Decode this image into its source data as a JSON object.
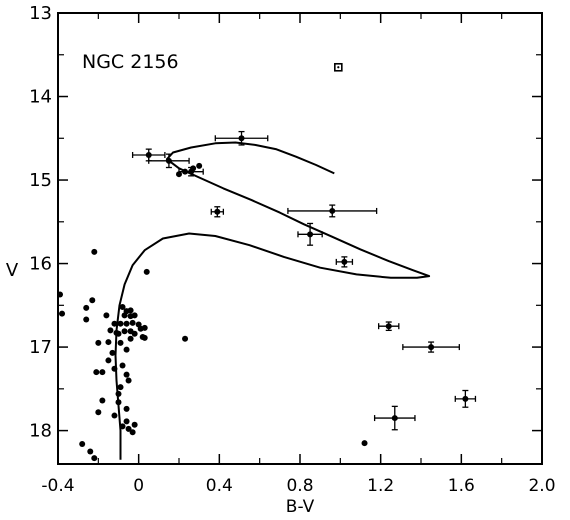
{
  "chart_data": {
    "type": "scatter",
    "title": "",
    "annotation": "NGC 2156",
    "xlabel": "B-V",
    "ylabel": "V",
    "xlim": [
      -0.4,
      2.0
    ],
    "ylim": [
      18.4,
      13.0
    ],
    "y_inverted": true,
    "grid": false,
    "legend": "none",
    "x_ticks": [
      -0.4,
      0.0,
      0.4,
      0.8,
      1.2,
      1.6,
      2.0
    ],
    "x_tick_labels": [
      "-0.4",
      "0",
      "0.4",
      "0.8",
      "1.2",
      "1.6",
      "2.0"
    ],
    "y_ticks": [
      13,
      14,
      15,
      16,
      17,
      18
    ],
    "y_tick_labels": [
      "13",
      "14",
      "15",
      "16",
      "17",
      "18"
    ],
    "series": [
      {
        "marker": "dot",
        "points": [
          [
            -0.39,
            16.37
          ],
          [
            -0.38,
            16.6
          ],
          [
            -0.22,
            15.86
          ],
          [
            -0.26,
            16.53
          ],
          [
            -0.23,
            16.44
          ],
          [
            -0.26,
            16.67
          ],
          [
            -0.2,
            16.95
          ],
          [
            -0.21,
            17.3
          ],
          [
            -0.18,
            17.3
          ],
          [
            -0.18,
            17.64
          ],
          [
            -0.2,
            17.78
          ],
          [
            -0.28,
            18.16
          ],
          [
            -0.24,
            18.25
          ],
          [
            -0.22,
            18.33
          ],
          [
            -0.16,
            16.62
          ],
          [
            -0.14,
            16.8
          ],
          [
            -0.12,
            16.72
          ],
          [
            -0.11,
            16.83
          ],
          [
            -0.15,
            16.94
          ],
          [
            -0.13,
            17.07
          ],
          [
            -0.15,
            17.16
          ],
          [
            -0.12,
            17.26
          ],
          [
            -0.09,
            17.48
          ],
          [
            -0.1,
            17.56
          ],
          [
            -0.1,
            17.66
          ],
          [
            -0.12,
            17.82
          ],
          [
            -0.08,
            17.95
          ],
          [
            -0.06,
            17.89
          ],
          [
            -0.06,
            17.74
          ],
          [
            -0.05,
            17.98
          ],
          [
            -0.03,
            18.02
          ],
          [
            -0.02,
            17.93
          ],
          [
            -0.08,
            16.52
          ],
          [
            -0.06,
            16.57
          ],
          [
            -0.04,
            16.56
          ],
          [
            -0.07,
            16.62
          ],
          [
            -0.04,
            16.63
          ],
          [
            -0.02,
            16.62
          ],
          [
            -0.09,
            16.72
          ],
          [
            -0.06,
            16.72
          ],
          [
            -0.03,
            16.71
          ],
          [
            0.0,
            16.73
          ],
          [
            -0.07,
            16.81
          ],
          [
            -0.04,
            16.81
          ],
          [
            -0.02,
            16.84
          ],
          [
            0.01,
            16.78
          ],
          [
            0.02,
            16.88
          ],
          [
            -0.1,
            16.84
          ],
          [
            -0.09,
            16.95
          ],
          [
            -0.06,
            17.03
          ],
          [
            -0.08,
            17.22
          ],
          [
            -0.06,
            17.33
          ],
          [
            -0.05,
            17.4
          ],
          [
            -0.04,
            16.9
          ],
          [
            0.03,
            16.77
          ],
          [
            0.03,
            16.89
          ],
          [
            0.04,
            16.1
          ],
          [
            0.2,
            14.93
          ],
          [
            0.23,
            14.9
          ],
          [
            0.27,
            14.86
          ],
          [
            0.3,
            14.83
          ],
          [
            0.23,
            16.9
          ],
          [
            1.12,
            18.15
          ]
        ]
      },
      {
        "marker": "errorbar",
        "points": [
          {
            "x": 0.05,
            "y": 14.7,
            "xerr": 0.08,
            "yerr": 0.07
          },
          {
            "x": 0.15,
            "y": 14.77,
            "xerr": 0.1,
            "yerr": 0.08
          },
          {
            "x": 0.26,
            "y": 14.9,
            "xerr": 0.06,
            "yerr": 0.05
          },
          {
            "x": 0.51,
            "y": 14.5,
            "xerr": 0.13,
            "yerr": 0.08
          },
          {
            "x": 0.39,
            "y": 15.38,
            "xerr": 0.03,
            "yerr": 0.06
          },
          {
            "x": 0.96,
            "y": 15.37,
            "xerr": 0.22,
            "yerr": 0.07
          },
          {
            "x": 0.85,
            "y": 15.65,
            "xerr": 0.06,
            "yerr": 0.13
          },
          {
            "x": 1.02,
            "y": 15.98,
            "xerr": 0.04,
            "yerr": 0.06
          },
          {
            "x": 1.24,
            "y": 16.75,
            "xerr": 0.05,
            "yerr": 0.05
          },
          {
            "x": 1.45,
            "y": 17.0,
            "xerr": 0.14,
            "yerr": 0.06
          },
          {
            "x": 1.27,
            "y": 17.85,
            "xerr": 0.1,
            "yerr": 0.14
          },
          {
            "x": 1.62,
            "y": 17.62,
            "xerr": 0.05,
            "yerr": 0.1
          }
        ]
      },
      {
        "marker": "open-square",
        "points": [
          [
            0.99,
            13.65
          ]
        ]
      },
      {
        "marker": "line",
        "points": [
          [
            -0.09,
            18.35
          ],
          [
            -0.09,
            18.0
          ],
          [
            -0.1,
            17.7
          ],
          [
            -0.11,
            17.4
          ],
          [
            -0.115,
            17.1
          ],
          [
            -0.11,
            16.8
          ],
          [
            -0.095,
            16.5
          ],
          [
            -0.07,
            16.25
          ],
          [
            -0.03,
            16.02
          ],
          [
            0.03,
            15.84
          ],
          [
            0.12,
            15.7
          ],
          [
            0.25,
            15.64
          ],
          [
            0.38,
            15.67
          ],
          [
            0.55,
            15.78
          ],
          [
            0.72,
            15.92
          ],
          [
            0.9,
            16.05
          ],
          [
            1.08,
            16.13
          ],
          [
            1.25,
            16.17
          ],
          [
            1.38,
            16.17
          ],
          [
            1.44,
            16.15
          ],
          [
            1.36,
            16.08
          ],
          [
            1.24,
            15.97
          ],
          [
            1.1,
            15.83
          ],
          [
            0.96,
            15.68
          ],
          [
            0.82,
            15.53
          ],
          [
            0.7,
            15.39
          ],
          [
            0.56,
            15.24
          ],
          [
            0.42,
            15.1
          ],
          [
            0.3,
            14.97
          ],
          [
            0.2,
            14.86
          ],
          [
            0.14,
            14.75
          ],
          [
            0.17,
            14.67
          ],
          [
            0.26,
            14.61
          ],
          [
            0.38,
            14.56
          ],
          [
            0.48,
            14.55
          ],
          [
            0.58,
            14.58
          ],
          [
            0.68,
            14.63
          ],
          [
            0.78,
            14.72
          ],
          [
            0.88,
            14.82
          ],
          [
            0.97,
            14.92
          ]
        ]
      }
    ]
  }
}
